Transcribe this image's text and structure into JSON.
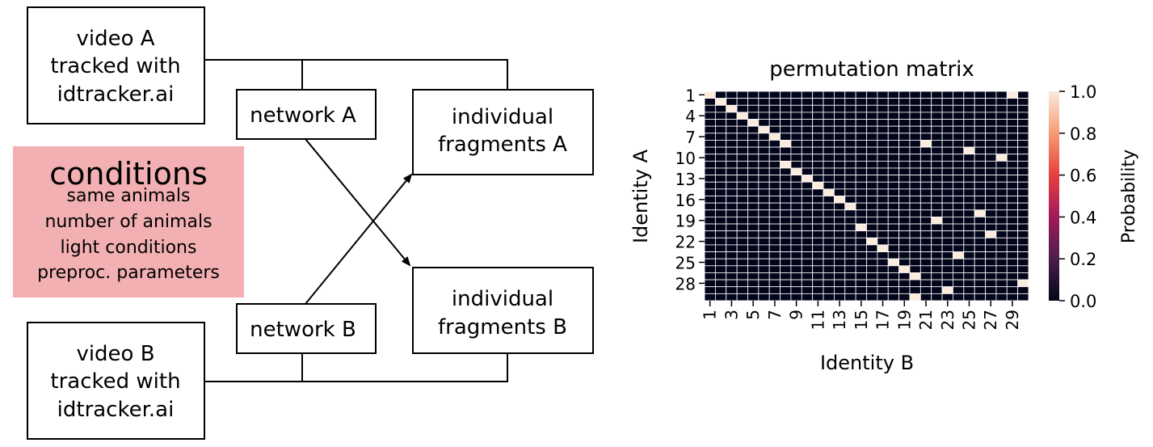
{
  "diagram": {
    "video_a": [
      "video A",
      "tracked with",
      "idtracker.ai"
    ],
    "video_b": [
      "video B",
      "tracked with",
      "idtracker.ai"
    ],
    "network_a": "network A",
    "network_b": "network B",
    "fragments_a": [
      "individual",
      "fragments A"
    ],
    "fragments_b": [
      "individual",
      "fragments B"
    ],
    "conditions": {
      "title": "conditions",
      "items": [
        "same animals",
        "number of animals",
        "light conditions",
        "preproc. parameters"
      ]
    },
    "colors": {
      "conditions_bg": "#f2b0b2"
    }
  },
  "chart_data": {
    "type": "heatmap",
    "title": "permutation matrix",
    "xlabel": "Identity B",
    "ylabel": "Identity A",
    "rows": 30,
    "cols": 30,
    "x_tick_labels": [
      "1",
      "3",
      "5",
      "7",
      "9",
      "11",
      "13",
      "15",
      "17",
      "19",
      "21",
      "23",
      "25",
      "27",
      "29"
    ],
    "y_tick_labels": [
      "1",
      "4",
      "7",
      "10",
      "13",
      "16",
      "19",
      "22",
      "25",
      "28"
    ],
    "colorbar": {
      "label": "Probability",
      "range": [
        0.0,
        1.0
      ],
      "tick_labels": [
        "0.0",
        "0.2",
        "0.4",
        "0.6",
        "0.8",
        "1.0"
      ],
      "colors": [
        "#03051a",
        "#4c1d4b",
        "#a11a5b",
        "#e83f3f",
        "#f69c73",
        "#faebdd"
      ]
    },
    "ones": [
      [
        1,
        1
      ],
      [
        1,
        29
      ],
      [
        2,
        2
      ],
      [
        3,
        3
      ],
      [
        4,
        4
      ],
      [
        5,
        5
      ],
      [
        6,
        6
      ],
      [
        7,
        7
      ],
      [
        8,
        8
      ],
      [
        8,
        21
      ],
      [
        9,
        25
      ],
      [
        10,
        28
      ],
      [
        11,
        8
      ],
      [
        12,
        9
      ],
      [
        13,
        10
      ],
      [
        14,
        11
      ],
      [
        15,
        12
      ],
      [
        16,
        13
      ],
      [
        17,
        14
      ],
      [
        18,
        26
      ],
      [
        19,
        22
      ],
      [
        20,
        15
      ],
      [
        21,
        27
      ],
      [
        22,
        16
      ],
      [
        23,
        17
      ],
      [
        24,
        24
      ],
      [
        25,
        18
      ],
      [
        26,
        19
      ],
      [
        27,
        20
      ],
      [
        28,
        30
      ],
      [
        29,
        23
      ],
      [
        30,
        20
      ]
    ]
  }
}
